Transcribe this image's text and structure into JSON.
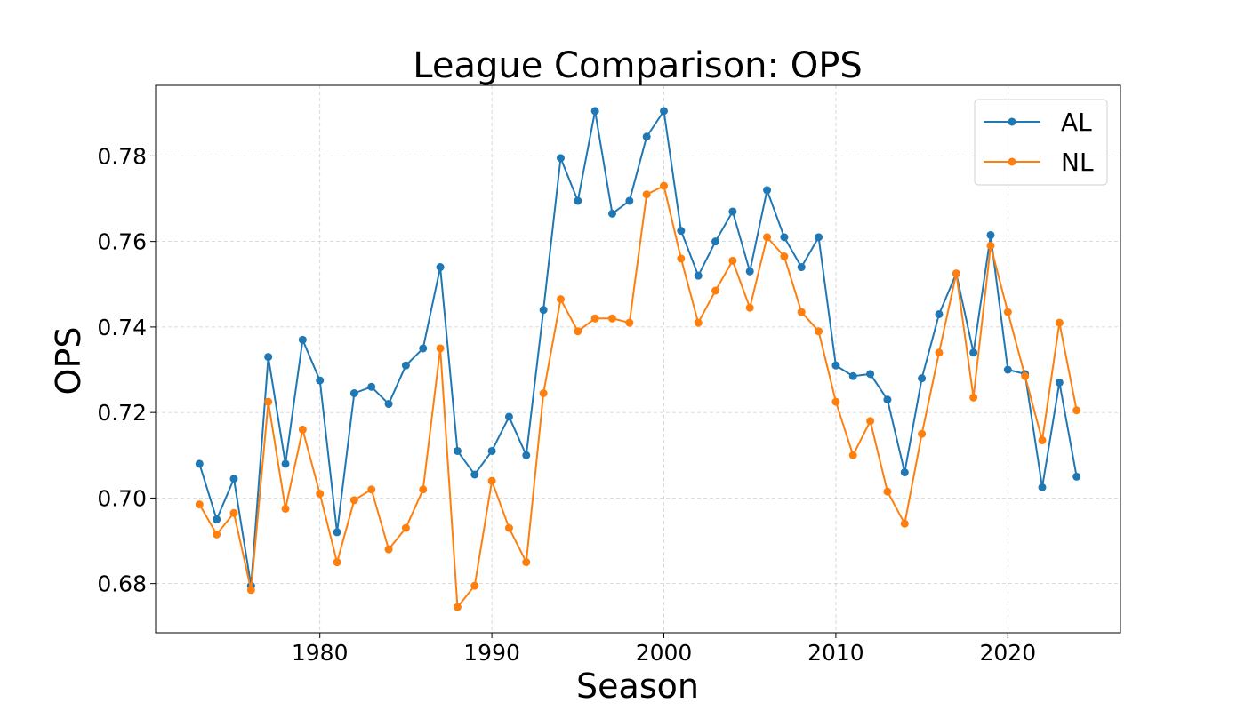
{
  "chart_data": {
    "type": "line",
    "title": "League Comparison: OPS",
    "xlabel": "Season",
    "ylabel": "OPS",
    "xlim": [
      1970.45,
      2026.55
    ],
    "ylim": [
      0.6685,
      0.7965
    ],
    "xticks": [
      1980,
      1990,
      2000,
      2010,
      2020
    ],
    "yticks": [
      0.68,
      0.7,
      0.72,
      0.74,
      0.76,
      0.78
    ],
    "grid": true,
    "legend_position": "top-right",
    "x": [
      1973,
      1974,
      1975,
      1976,
      1977,
      1978,
      1979,
      1980,
      1981,
      1982,
      1983,
      1984,
      1985,
      1986,
      1987,
      1988,
      1989,
      1990,
      1991,
      1992,
      1993,
      1994,
      1995,
      1996,
      1997,
      1998,
      1999,
      2000,
      2001,
      2002,
      2003,
      2004,
      2005,
      2006,
      2007,
      2008,
      2009,
      2010,
      2011,
      2012,
      2013,
      2014,
      2015,
      2016,
      2017,
      2018,
      2019,
      2020,
      2021,
      2022,
      2023,
      2024
    ],
    "series": [
      {
        "name": "AL",
        "color": "#1f77b4",
        "values": [
          0.708,
          0.695,
          0.7045,
          0.6795,
          0.733,
          0.708,
          0.737,
          0.7275,
          0.692,
          0.7245,
          0.726,
          0.722,
          0.731,
          0.735,
          0.754,
          0.711,
          0.7055,
          0.711,
          0.719,
          0.71,
          0.744,
          0.7795,
          0.7695,
          0.7905,
          0.7665,
          0.7695,
          0.7845,
          0.7905,
          0.7625,
          0.752,
          0.76,
          0.767,
          0.753,
          0.772,
          0.761,
          0.754,
          0.761,
          0.731,
          0.7285,
          0.729,
          0.723,
          0.706,
          0.728,
          0.743,
          0.7525,
          0.734,
          0.7615,
          0.73,
          0.729,
          0.7025,
          0.727,
          0.705
        ]
      },
      {
        "name": "NL",
        "color": "#ff7f0e",
        "values": [
          0.6985,
          0.6915,
          0.6965,
          0.6785,
          0.7225,
          0.6975,
          0.716,
          0.701,
          0.685,
          0.6995,
          0.702,
          0.688,
          0.693,
          0.702,
          0.735,
          0.6745,
          0.6795,
          0.704,
          0.693,
          0.685,
          0.7245,
          0.7465,
          0.739,
          0.742,
          0.742,
          0.741,
          0.771,
          0.773,
          0.756,
          0.741,
          0.7485,
          0.7555,
          0.7445,
          0.761,
          0.7565,
          0.7435,
          0.739,
          0.7225,
          0.71,
          0.718,
          0.7015,
          0.694,
          0.715,
          0.734,
          0.7525,
          0.7235,
          0.759,
          0.7435,
          0.7285,
          0.7135,
          0.741,
          0.7205
        ]
      }
    ]
  }
}
